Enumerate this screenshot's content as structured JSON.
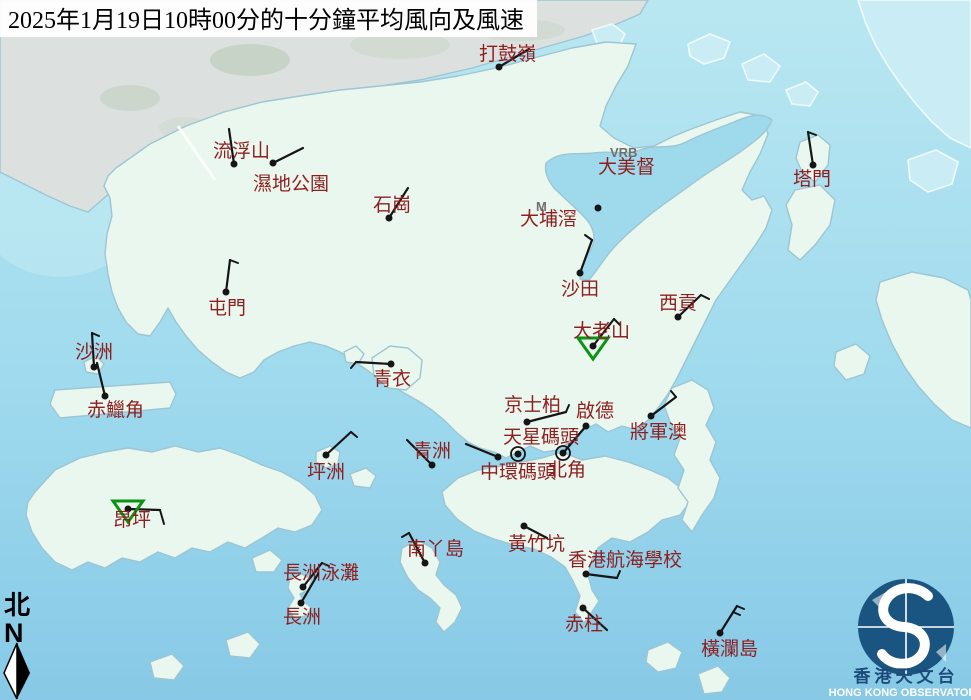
{
  "title": "2025年1月19日10時00分的十分鐘平均風向及風速",
  "compass": {
    "zh": "北",
    "en": "N"
  },
  "logo": {
    "zh": "香港天文台",
    "en": "HONG KONG OBSERVATORY"
  },
  "colors": {
    "sea_top": "#b9e7f1",
    "sea_bottom": "#87c9e6",
    "land_hk": "#eaf7ef",
    "land_outside": "#c9ecf5",
    "land_urban": "#dce1e0",
    "coast": "#9cc6d2",
    "station_label": "#8e1f1f",
    "note_gray": "#6f6f6f",
    "triangle_green": "#0a9612",
    "marker_black": "#151515",
    "logo_blue": "#1a5480",
    "logo_text_blue": "#1c4c7a"
  },
  "stations": [
    {
      "id": "ta-kwu-ling",
      "label": "打鼓嶺",
      "lxy": [
        479,
        60
      ],
      "dot": [
        499,
        67
      ],
      "staff": [
        529,
        49
      ],
      "ticks": []
    },
    {
      "id": "lau-fau-shan",
      "label": "流浮山",
      "lxy": [
        213,
        157
      ],
      "dot": [
        234,
        164
      ],
      "staff": [
        229,
        129
      ],
      "ticks": []
    },
    {
      "id": "wetland-park",
      "label": "濕地公園",
      "lxy": [
        253,
        190
      ],
      "dot": [
        273,
        163
      ],
      "staff": [
        303,
        148
      ],
      "ticks": []
    },
    {
      "id": "shek-kong",
      "label": "石崗",
      "lxy": [
        373,
        211
      ],
      "dot": [
        389,
        218
      ],
      "staff": [
        408,
        188
      ],
      "ticks": []
    },
    {
      "id": "tap-mun",
      "label": "塔門",
      "lxy": [
        793,
        185
      ],
      "dot": [
        813,
        165
      ],
      "staff": [
        808,
        132
      ],
      "ticks": [
        [
          808,
          132,
          816,
          135
        ]
      ]
    },
    {
      "id": "tai-mei-tuk",
      "label": "大美督",
      "lxy": [
        598,
        173
      ],
      "dot": [
        598,
        208
      ],
      "staff": null,
      "ticks": [],
      "note": "VRB",
      "nxy": [
        610,
        157
      ]
    },
    {
      "id": "tai-po-kau",
      "label": "大埔滘",
      "lxy": [
        520,
        225
      ],
      "dot": null,
      "staff": null,
      "ticks": [],
      "note": "M",
      "nxy": [
        536,
        211
      ]
    },
    {
      "id": "sha-tin",
      "label": "沙田",
      "lxy": [
        561,
        295
      ],
      "dot": [
        580,
        273
      ],
      "staff": [
        592,
        240
      ],
      "ticks": [
        [
          592,
          240,
          585,
          235
        ]
      ]
    },
    {
      "id": "tuen-mun",
      "label": "屯門",
      "lxy": [
        208,
        314
      ],
      "dot": [
        226,
        292
      ],
      "staff": [
        230,
        260
      ],
      "ticks": [
        [
          230,
          260,
          238,
          263
        ]
      ]
    },
    {
      "id": "sai-kung",
      "label": "西貢",
      "lxy": [
        659,
        309
      ],
      "dot": [
        678,
        317
      ],
      "staff": [
        701,
        295
      ],
      "ticks": [
        [
          701,
          295,
          709,
          299
        ]
      ]
    },
    {
      "id": "tates-cairn",
      "label": "大老山",
      "lxy": [
        573,
        337
      ],
      "dot": [
        593,
        346
      ],
      "staff": [
        614,
        319
      ],
      "ticks": [
        [
          614,
          319,
          620,
          325
        ]
      ],
      "triangle": true
    },
    {
      "id": "sha-chau",
      "label": "沙洲",
      "lxy": [
        75,
        358
      ],
      "dot": [
        94,
        367
      ],
      "staff": [
        92,
        333
      ],
      "ticks": [
        [
          92,
          333,
          99,
          336
        ]
      ]
    },
    {
      "id": "chek-lap-kok",
      "label": "赤鱲角",
      "lxy": [
        87,
        416
      ],
      "dot": [
        105,
        396
      ],
      "staff": [
        97,
        363
      ],
      "ticks": []
    },
    {
      "id": "tsing-yi",
      "label": "青衣",
      "lxy": [
        373,
        385
      ],
      "dot": [
        391,
        364
      ],
      "staff": [
        356,
        362
      ],
      "ticks": [
        [
          356,
          362,
          351,
          368
        ]
      ]
    },
    {
      "id": "peng-chau",
      "label": "坪洲",
      "lxy": [
        307,
        478
      ],
      "dot": [
        326,
        455
      ],
      "staff": [
        351,
        432
      ],
      "ticks": [
        [
          351,
          432,
          357,
          437
        ]
      ]
    },
    {
      "id": "green-island",
      "label": "青洲",
      "lxy": [
        413,
        457
      ],
      "dot": [
        432,
        465
      ],
      "staff": [
        407,
        440
      ],
      "ticks": []
    },
    {
      "id": "kings-park",
      "label": "京士柏",
      "lxy": [
        504,
        411
      ],
      "dot": [
        527,
        422
      ],
      "staff": [
        566,
        412
      ],
      "ticks": [
        [
          566,
          412,
          569,
          405
        ]
      ]
    },
    {
      "id": "kai-tak",
      "label": "啟德",
      "lxy": [
        576,
        417
      ],
      "dot": [
        586,
        426
      ],
      "staff": [
        564,
        452
      ],
      "ticks": []
    },
    {
      "id": "star-ferry-pier",
      "label": "天星碼頭",
      "lxy": [
        503,
        443
      ],
      "dot": [
        518,
        454
      ],
      "staff": null,
      "ticks": [],
      "calm": true
    },
    {
      "id": "central-pier",
      "label": "中環碼頭",
      "lxy": [
        480,
        478
      ],
      "dot": [
        498,
        457
      ],
      "staff": [
        466,
        444
      ],
      "ticks": []
    },
    {
      "id": "north-point",
      "label": "北角",
      "lxy": [
        548,
        476
      ],
      "dot": [
        563,
        453
      ],
      "staff": null,
      "ticks": [],
      "calm": true
    },
    {
      "id": "tseung-kwan-o",
      "label": "將軍澳",
      "lxy": [
        630,
        438
      ],
      "dot": [
        651,
        416
      ],
      "staff": [
        676,
        397
      ],
      "ticks": [
        [
          676,
          397,
          671,
          391
        ]
      ]
    },
    {
      "id": "ngong-ping",
      "label": "昂坪",
      "lxy": [
        113,
        526
      ],
      "dot": [
        128,
        509
      ],
      "staff": [
        160,
        510
      ],
      "ticks": [
        [
          160,
          510,
          164,
          524
        ]
      ],
      "triangle": true
    },
    {
      "id": "lamma-island",
      "label": "南丫島",
      "lxy": [
        407,
        555
      ],
      "dot": [
        425,
        563
      ],
      "staff": [
        409,
        533
      ],
      "ticks": [
        [
          409,
          533,
          402,
          537
        ]
      ]
    },
    {
      "id": "wong-chuk-hang",
      "label": "黃竹坑",
      "lxy": [
        508,
        550
      ],
      "dot": [
        524,
        526
      ],
      "staff": [
        547,
        538
      ],
      "ticks": []
    },
    {
      "id": "sea-school",
      "label": "香港航海學校",
      "lxy": [
        568,
        566
      ],
      "dot": [
        586,
        574
      ],
      "staff": [
        617,
        578
      ],
      "ticks": [
        [
          617,
          578,
          620,
          571
        ]
      ]
    },
    {
      "id": "stanley",
      "label": "赤柱",
      "lxy": [
        565,
        630
      ],
      "dot": [
        583,
        608
      ],
      "staff": [
        607,
        630
      ],
      "ticks": []
    },
    {
      "id": "cheung-chau-beach",
      "label": "長洲泳灘",
      "lxy": [
        283,
        579
      ],
      "dot": [
        303,
        587
      ],
      "staff": [
        322,
        563
      ],
      "ticks": [
        [
          322,
          563,
          329,
          566
        ]
      ]
    },
    {
      "id": "cheung-chau",
      "label": "長洲",
      "lxy": [
        283,
        623
      ],
      "dot": [
        301,
        603
      ],
      "staff": [
        318,
        574
      ],
      "ticks": []
    },
    {
      "id": "waglan-island",
      "label": "橫瀾島",
      "lxy": [
        701,
        655
      ],
      "dot": [
        720,
        633
      ],
      "staff": [
        737,
        606
      ],
      "ticks": [
        [
          737,
          606,
          744,
          609
        ],
        [
          733,
          612,
          740,
          615
        ]
      ]
    }
  ]
}
